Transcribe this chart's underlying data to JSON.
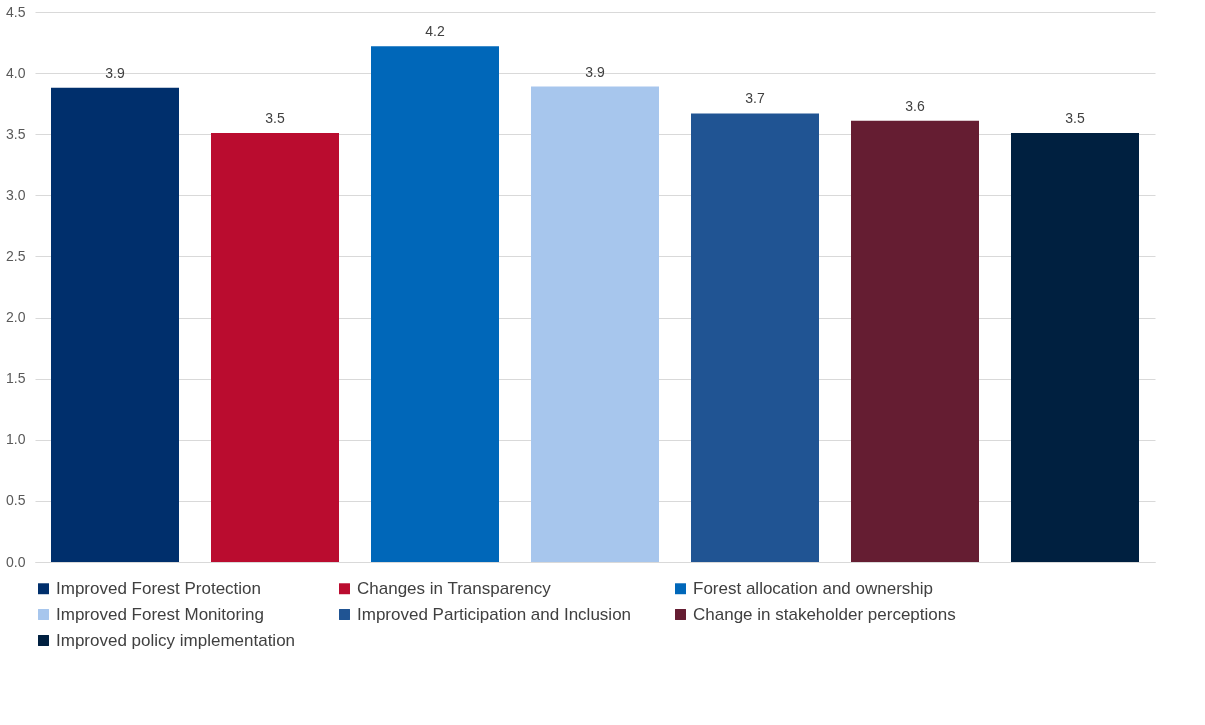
{
  "chart_data": {
    "type": "bar",
    "categories": [
      null
    ],
    "series": [
      {
        "name": "Improved Forest Protection",
        "color": "#002f6c",
        "values": [
          3.88
        ],
        "value_labels": [
          "3.9"
        ]
      },
      {
        "name": "Changes in Transparency",
        "color": "#ba0c2f",
        "values": [
          3.51
        ],
        "value_labels": [
          "3.5"
        ]
      },
      {
        "name": " Forest allocation and ownership",
        "color": "#0067b9",
        "values": [
          4.22
        ],
        "value_labels": [
          "4.2"
        ]
      },
      {
        "name": "Improved Forest Monitoring",
        "color": "#a7c6ed",
        "values": [
          3.89
        ],
        "value_labels": [
          "3.9"
        ]
      },
      {
        "name": "Improved Participation and Inclusion",
        "color": "#205493",
        "values": [
          3.67
        ],
        "value_labels": [
          "3.7"
        ]
      },
      {
        "name": "Change in stakeholder perceptions",
        "color": "#651d32",
        "values": [
          3.61
        ],
        "value_labels": [
          "3.6"
        ]
      },
      {
        "name": "Improved policy implementation",
        "color": "#002040",
        "values": [
          3.51
        ],
        "value_labels": [
          "3.5"
        ]
      }
    ],
    "ylim": [
      0,
      4.5
    ],
    "yticks": [
      {
        "value": 0,
        "label": "0.0"
      },
      {
        "value": 0.5,
        "label": "0.5"
      },
      {
        "value": 1,
        "label": "1.0"
      },
      {
        "value": 1.5,
        "label": "1.5"
      },
      {
        "value": 2,
        "label": "2.0"
      },
      {
        "value": 2.5,
        "label": "2.5"
      },
      {
        "value": 3,
        "label": "3.0"
      },
      {
        "value": 3.5,
        "label": "3.5"
      },
      {
        "value": 4,
        "label": "4.0"
      },
      {
        "value": 4.5,
        "label": "4.5"
      }
    ],
    "grid": "y",
    "legend": "bottom",
    "tick_labels": "y"
  }
}
